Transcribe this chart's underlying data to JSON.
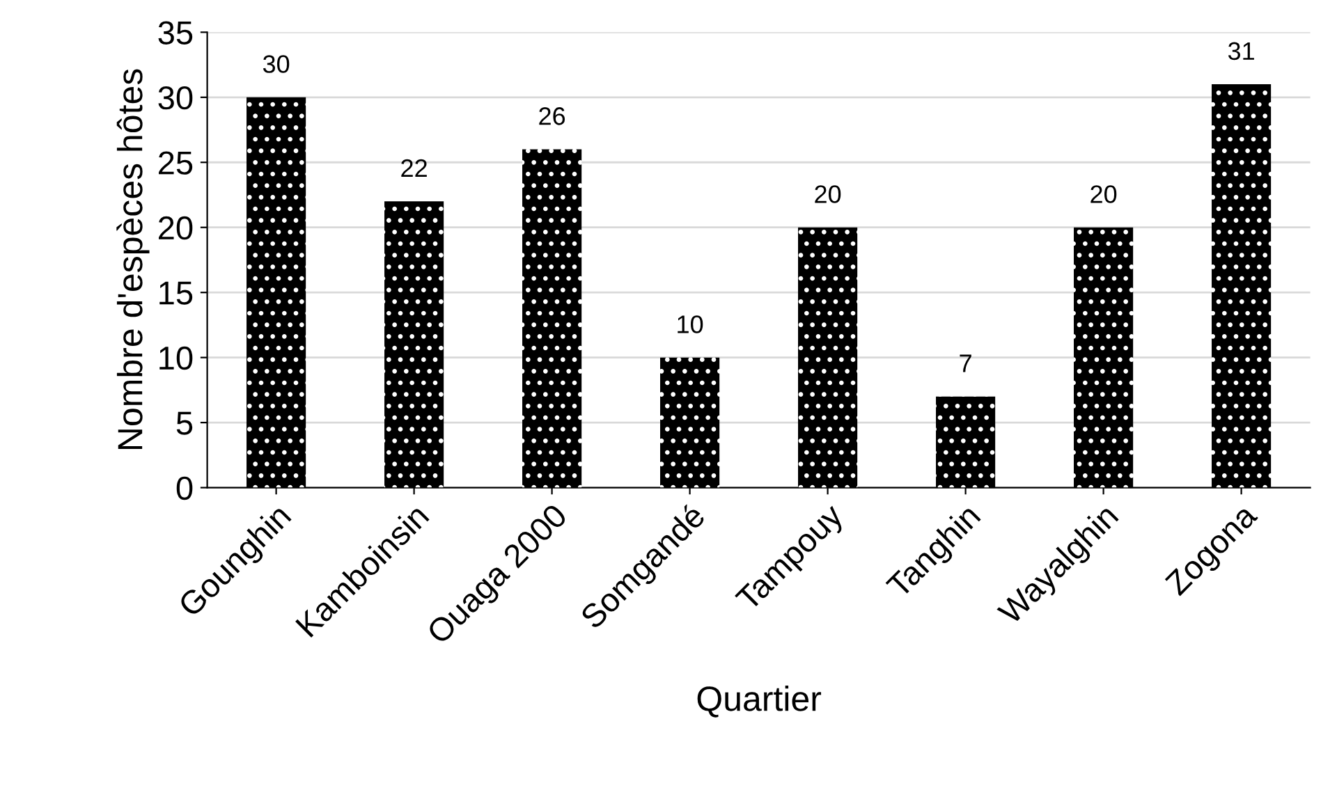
{
  "chart_data": {
    "type": "bar",
    "xlabel": "Quartier",
    "ylabel": "Nombre d'espèces hôtes",
    "categories": [
      "Gounghin",
      "Kamboinsin",
      "Ouaga 2000",
      "Somgandé",
      "Tampouy",
      "Tanghin",
      "Wayalghin",
      "Zogona"
    ],
    "values": [
      30,
      22,
      26,
      10,
      20,
      7,
      20,
      31
    ],
    "color": "#000000",
    "ylim": [
      0,
      35
    ],
    "yticks": [
      0,
      5,
      10,
      15,
      20,
      25,
      30,
      35
    ],
    "grid": "y",
    "data_labels": true,
    "legend": false
  }
}
